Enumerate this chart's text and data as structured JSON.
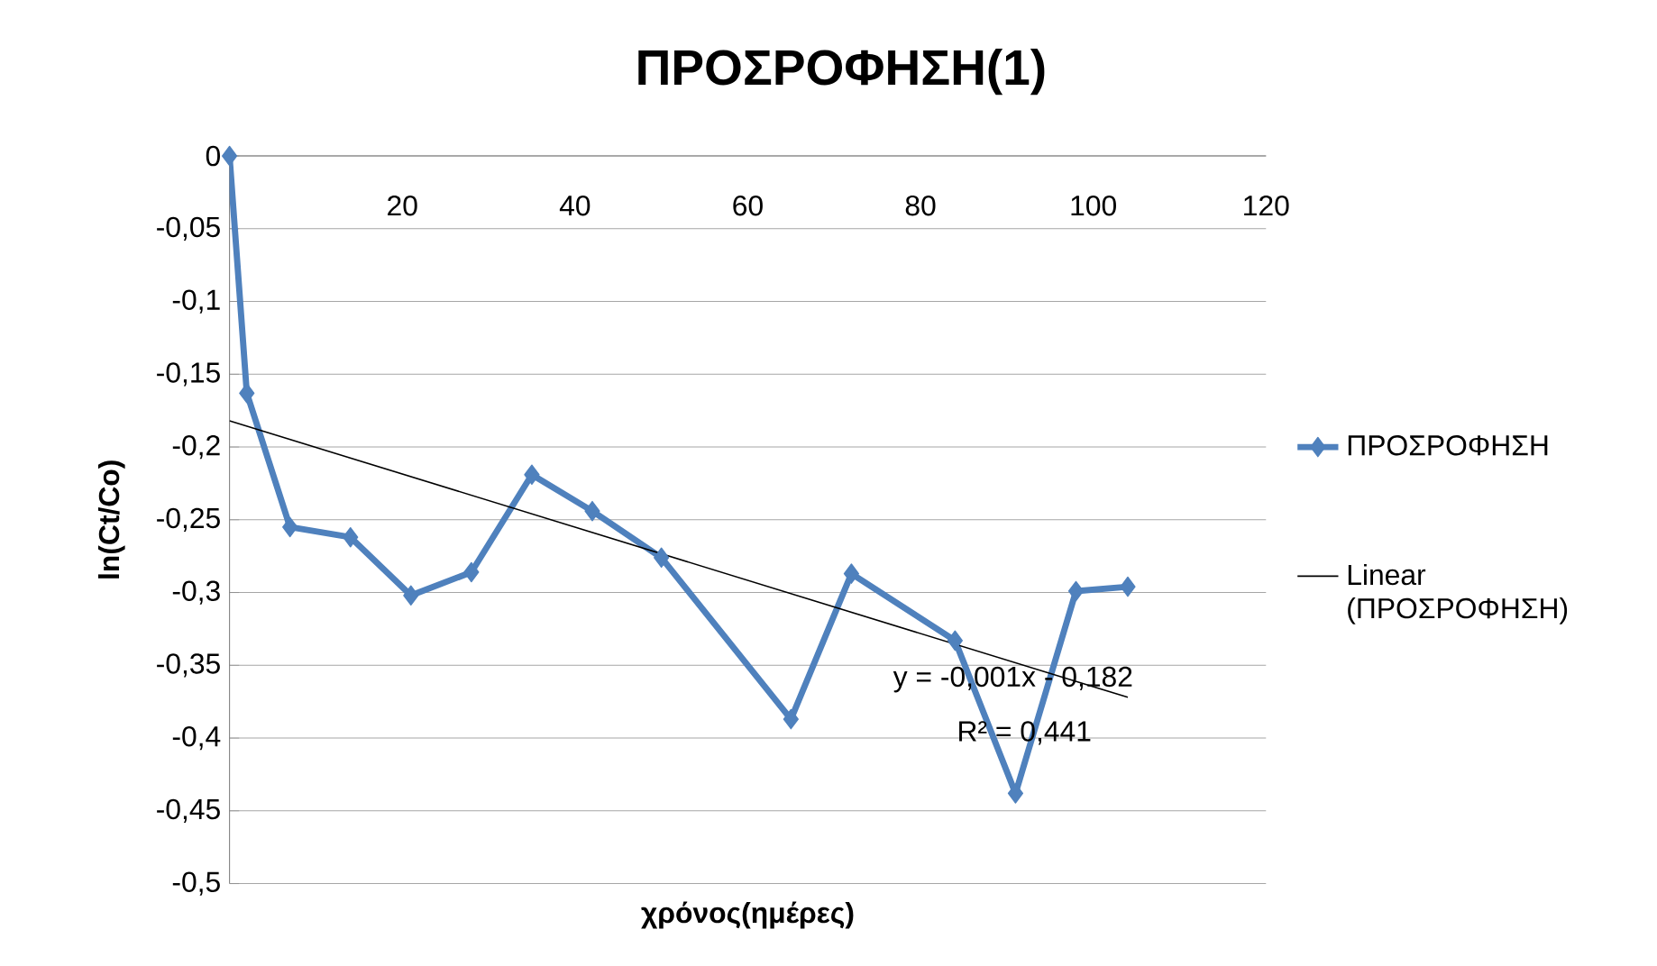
{
  "chart_data": {
    "type": "line",
    "title": "ΠΡΟΣΡΟΦΗΣΗ(1)",
    "xlabel": "χρόνος(ημέρες)",
    "ylabel": "ln(Ct/Co)",
    "series": [
      {
        "name": "ΠΡΟΣΡΟΦΗΣΗ",
        "color": "#4f81bd",
        "x": [
          0,
          2,
          7,
          14,
          21,
          28,
          35,
          42,
          50,
          65,
          72,
          84,
          91,
          98,
          104
        ],
        "values": [
          0,
          -0.163,
          -0.255,
          -0.262,
          -0.302,
          -0.286,
          -0.219,
          -0.244,
          -0.276,
          -0.387,
          -0.287,
          -0.333,
          -0.438,
          -0.299,
          -0.296
        ]
      },
      {
        "name": "Linear (ΠΡΟΣΡΟΦΗΣΗ)",
        "type": "line",
        "marker": "none",
        "color": "#000000",
        "x": [
          0,
          104
        ],
        "values": [
          -0.182,
          -0.372
        ]
      }
    ],
    "xlim": [
      0,
      120
    ],
    "xticks": [
      20,
      40,
      60,
      80,
      100,
      120
    ],
    "ylim": [
      -0.5,
      0
    ],
    "yticks": [
      0,
      {
        "value": -0.05,
        "label": "-0,05"
      },
      {
        "value": -0.1,
        "label": "-0,1"
      },
      {
        "value": -0.15,
        "label": "-0,15"
      },
      {
        "value": -0.2,
        "label": "-0,2"
      },
      {
        "value": -0.25,
        "label": "-0,25"
      },
      {
        "value": -0.3,
        "label": "-0,3"
      },
      {
        "value": -0.35,
        "label": "-0,35"
      },
      {
        "value": -0.4,
        "label": "-0,4"
      },
      {
        "value": -0.45,
        "label": "-0,45"
      },
      {
        "value": -0.5,
        "label": "-0,5"
      }
    ],
    "grid": "y",
    "legend": "right",
    "marker": "diamond",
    "line_style": "solid",
    "annotations": [
      "y = -0,001x - 0,182",
      "R² = 0,441"
    ]
  }
}
